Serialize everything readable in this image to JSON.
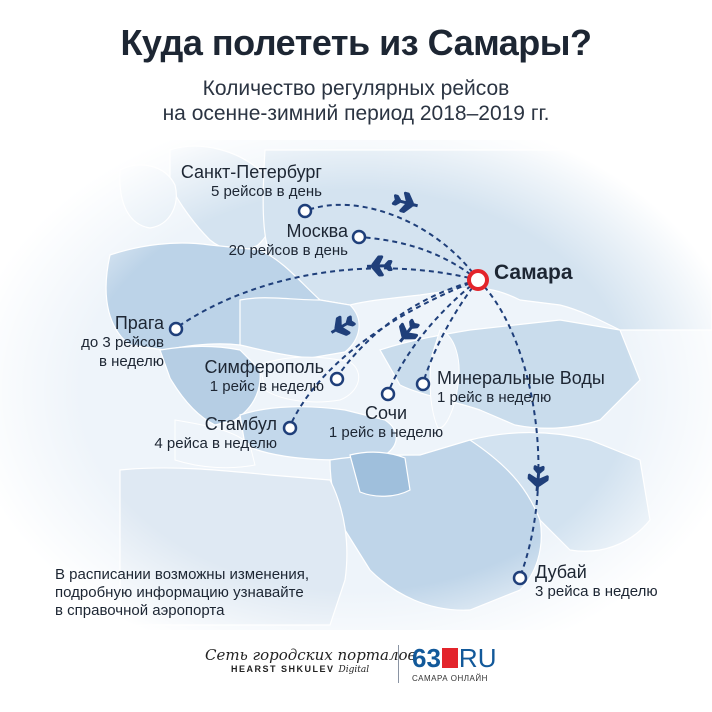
{
  "title": "Куда полететь из Самары?",
  "subtitle_line1": "Количество регулярных рейсов",
  "subtitle_line2": "на осенне-зимний период 2018–2019 гг.",
  "hub": {
    "name": "Самара",
    "color": "#e3242b"
  },
  "destinations": [
    {
      "name": "Санкт-Петербург",
      "freq": "5 рейсов в день"
    },
    {
      "name": "Москва",
      "freq": "20 рейсов в день"
    },
    {
      "name": "Прага",
      "freq_line1": "до 3 рейсов",
      "freq_line2": "в неделю"
    },
    {
      "name": "Симферополь",
      "freq": "1 рейс в неделю"
    },
    {
      "name": "Минеральные Воды",
      "freq": "1 рейс в неделю"
    },
    {
      "name": "Сочи",
      "freq": "1 рейс в неделю"
    },
    {
      "name": "Стамбул",
      "freq": "4 рейса в неделю"
    },
    {
      "name": "Дубай",
      "freq": "3 рейса  в неделю"
    }
  ],
  "note_line1": "В расписании возможны изменения,",
  "note_line2": "подробную информацию узнавайте",
  "note_line3": "в справочной аэропорта",
  "footer": {
    "network": "Сеть городских порталов",
    "hearst": "HEARST SHKULEV",
    "digital": "Digital",
    "logo_num": "63",
    "logo_ru": "RU",
    "logo_sub": "САМАРА ОНЛАЙН"
  },
  "colors": {
    "route": "#1f3f7a",
    "land": "#c9dcec",
    "land_dark": "#9fbfdc",
    "sea": "#eef4fa",
    "accent": "#e3242b"
  }
}
